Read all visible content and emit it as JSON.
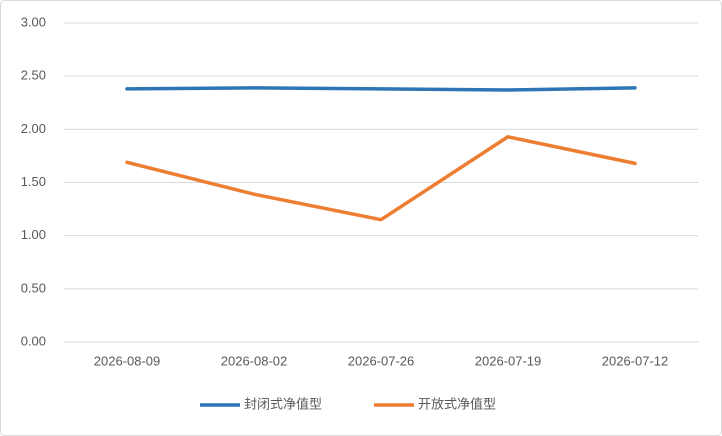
{
  "chart_data": {
    "type": "line",
    "categories": [
      "2026-08-09",
      "2026-08-02",
      "2026-07-26",
      "2026-07-19",
      "2026-07-12"
    ],
    "series": [
      {
        "name": "封闭式净值型",
        "color": "#2e75b6",
        "values": [
          2.38,
          2.39,
          2.38,
          2.37,
          2.39
        ]
      },
      {
        "name": "开放式净值型",
        "color": "#ed7d31",
        "values": [
          1.69,
          1.39,
          1.15,
          1.93,
          1.68
        ]
      }
    ],
    "ylim": [
      0,
      3
    ],
    "yticks": [
      {
        "value": 0,
        "label": "0.00"
      },
      {
        "value": 0.5,
        "label": "0.50"
      },
      {
        "value": 1,
        "label": "1.00"
      },
      {
        "value": 1.5,
        "label": "1.50"
      },
      {
        "value": 2,
        "label": "2.00"
      },
      {
        "value": 2.5,
        "label": "2.50"
      },
      {
        "value": 3,
        "label": "3.00"
      }
    ],
    "grid": true,
    "legend": "bottom"
  }
}
